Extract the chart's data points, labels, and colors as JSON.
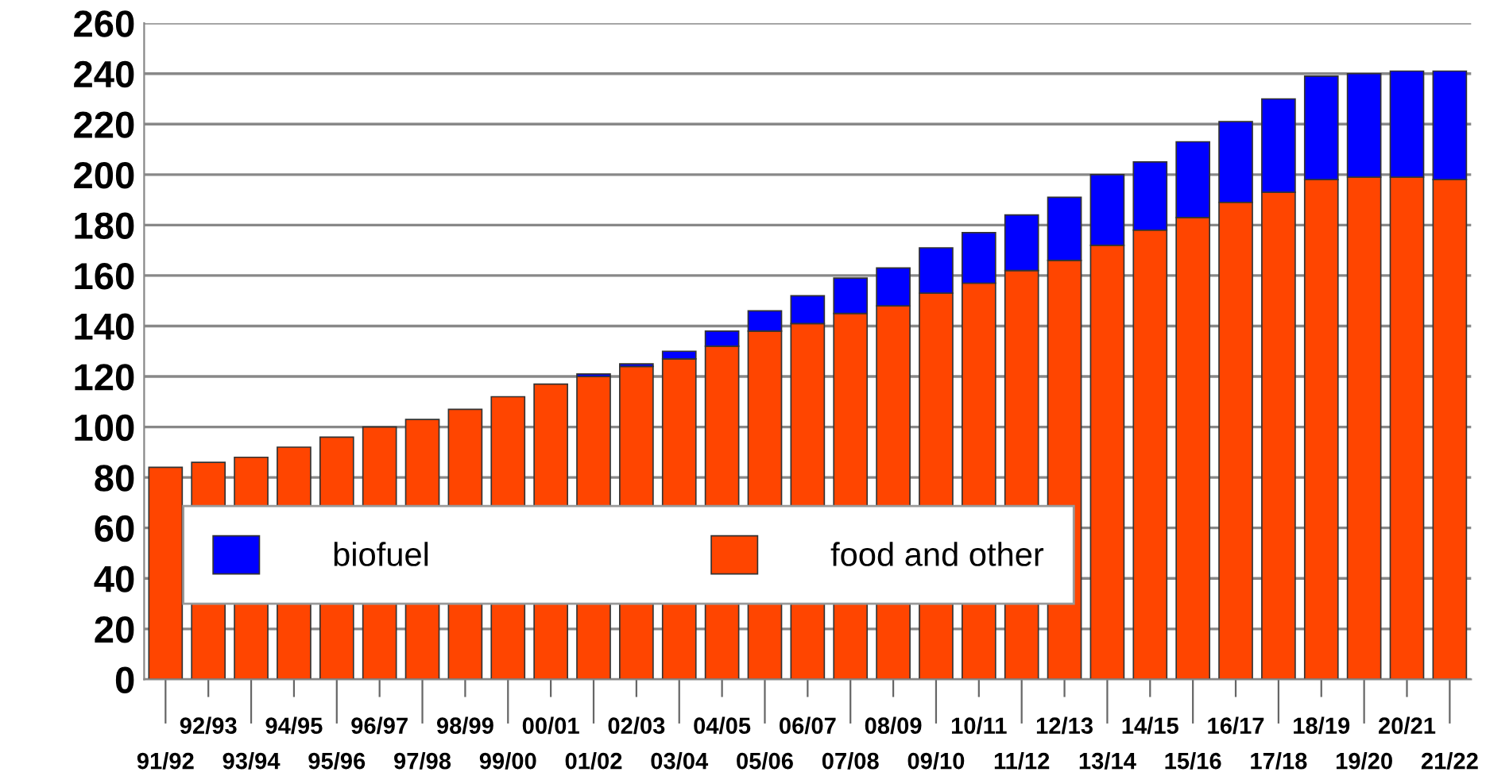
{
  "chart_data": {
    "type": "bar",
    "stacked": true,
    "categories": [
      "91/92",
      "92/93",
      "93/94",
      "94/95",
      "95/96",
      "96/97",
      "97/98",
      "98/99",
      "99/00",
      "00/01",
      "01/02",
      "02/03",
      "03/04",
      "04/05",
      "05/06",
      "06/07",
      "07/08",
      "08/09",
      "09/10",
      "10/11",
      "11/12",
      "12/13",
      "13/14",
      "14/15",
      "15/16",
      "16/17",
      "17/18",
      "18/19",
      "19/20",
      "20/21",
      "21/22"
    ],
    "series": [
      {
        "name": "food and other",
        "color": "#ff4500",
        "values": [
          84,
          86,
          88,
          92,
          96,
          100,
          103,
          107,
          112,
          117,
          120,
          124,
          127,
          132,
          138,
          141,
          145,
          148,
          153,
          157,
          162,
          166,
          172,
          178,
          183,
          189,
          193,
          198,
          199,
          199,
          198
        ]
      },
      {
        "name": "biofuel",
        "color": "#0000ff",
        "values": [
          null,
          null,
          null,
          null,
          null,
          null,
          null,
          null,
          null,
          null,
          1,
          1,
          3,
          6,
          8,
          11,
          14,
          15,
          18,
          20,
          22,
          25,
          28,
          27,
          30,
          32,
          37,
          41,
          41,
          42,
          43
        ]
      }
    ],
    "ylim": [
      0,
      260
    ],
    "yticks": [
      0,
      20,
      40,
      60,
      80,
      100,
      120,
      140,
      160,
      180,
      200,
      220,
      240,
      260
    ],
    "grid": "y",
    "legend": "bottom left"
  }
}
